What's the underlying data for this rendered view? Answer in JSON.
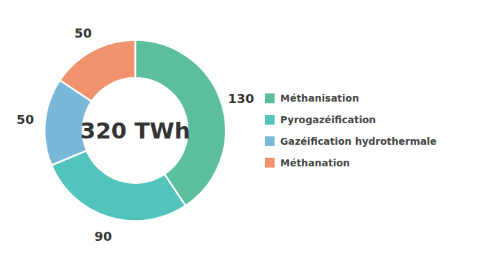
{
  "chart_data": {
    "type": "donut",
    "categories": [
      "Méthanisation",
      "Pyrogazéification",
      "Gazéification hydrothermale",
      "Méthanation"
    ],
    "values": [
      130,
      90,
      50,
      50
    ],
    "colors": [
      "#5bbf9f",
      "#52c4bc",
      "#7ab8d9",
      "#f0926e"
    ],
    "annotations": [
      "320 TWh"
    ],
    "data_labels": true,
    "legend": "right"
  }
}
